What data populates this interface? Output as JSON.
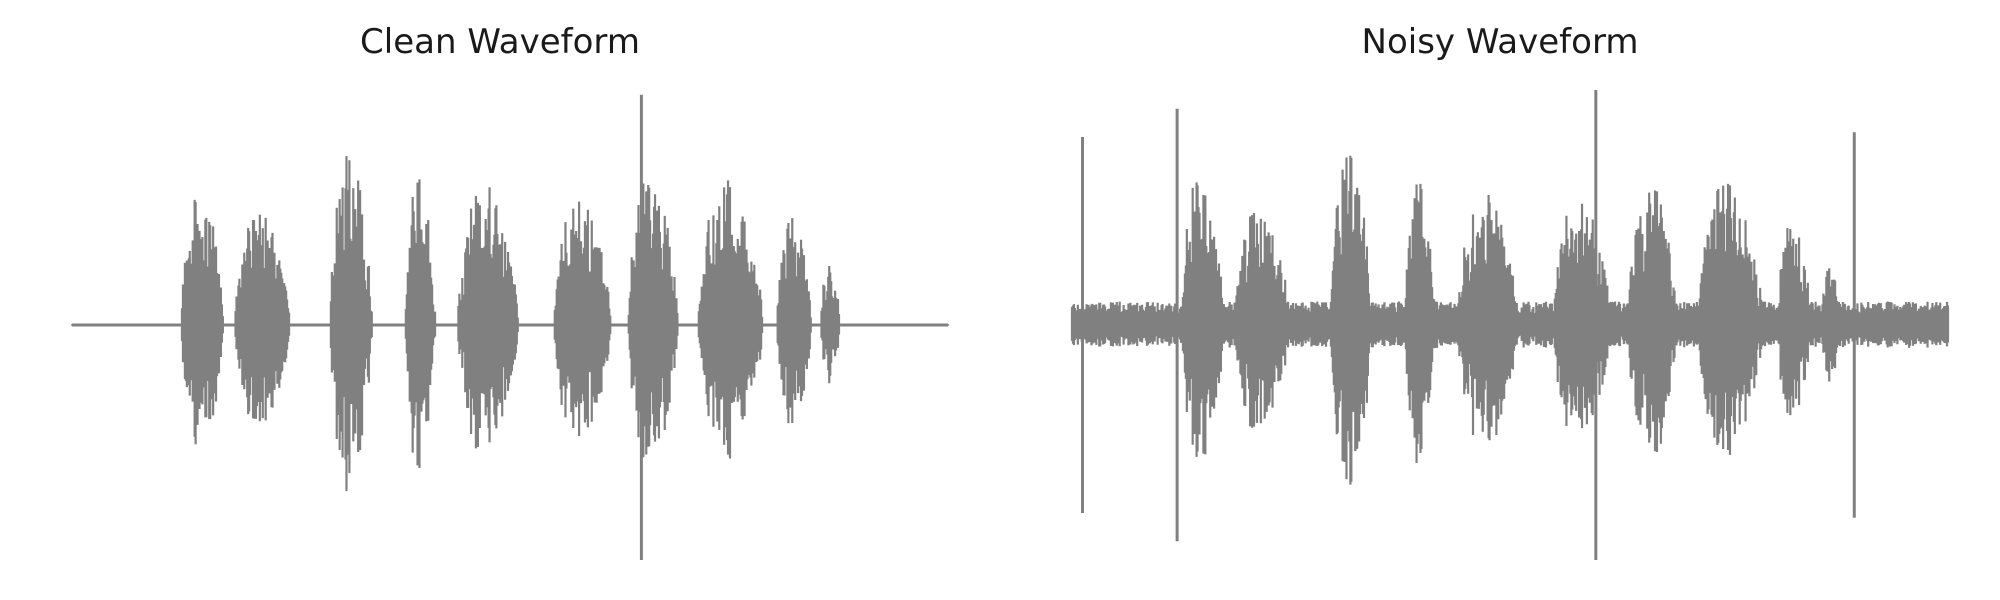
{
  "chart_data": [
    {
      "type": "line",
      "title": "Clean Waveform",
      "color": "#808080",
      "grid": false,
      "axes_visible": false,
      "ylim": [
        -1.0,
        1.0
      ],
      "x_range": [
        0.0,
        1.0
      ],
      "segments": [
        {
          "x": [
            0.125,
            0.18
          ],
          "peak": 0.68
        },
        {
          "x": [
            0.186,
            0.258
          ],
          "peak": 0.56
        },
        {
          "x": [
            0.295,
            0.35
          ],
          "peak": 0.9
        },
        {
          "x": [
            0.38,
            0.42
          ],
          "peak": 0.75
        },
        {
          "x": [
            0.44,
            0.52
          ],
          "peak": 0.71
        },
        {
          "x": [
            0.55,
            0.625
          ],
          "peak": 0.65
        },
        {
          "x": [
            0.635,
            0.7
          ],
          "peak": 0.75
        },
        {
          "x": [
            0.715,
            0.8
          ],
          "peak": 0.74
        },
        {
          "x": [
            0.805,
            0.85
          ],
          "peak": 0.55
        },
        {
          "x": [
            0.855,
            0.88
          ],
          "peak": 0.32
        }
      ],
      "spikes": [
        {
          "x": 0.65,
          "top": 0.98,
          "bottom": -1.0
        }
      ],
      "floor": 0.0
    },
    {
      "type": "line",
      "title": "Noisy Waveform",
      "color": "#808080",
      "grid": false,
      "axes_visible": false,
      "ylim": [
        -1.0,
        1.0
      ],
      "x_range": [
        0.0,
        1.0
      ],
      "segments": [
        {
          "x": [
            0.125,
            0.18
          ],
          "peak": 0.8
        },
        {
          "x": [
            0.186,
            0.258
          ],
          "peak": 0.6
        },
        {
          "x": [
            0.295,
            0.35
          ],
          "peak": 0.85
        },
        {
          "x": [
            0.38,
            0.42
          ],
          "peak": 0.72
        },
        {
          "x": [
            0.44,
            0.52
          ],
          "peak": 0.68
        },
        {
          "x": [
            0.55,
            0.625
          ],
          "peak": 0.66
        },
        {
          "x": [
            0.635,
            0.7
          ],
          "peak": 0.72
        },
        {
          "x": [
            0.715,
            0.8
          ],
          "peak": 0.72
        },
        {
          "x": [
            0.805,
            0.85
          ],
          "peak": 0.52
        },
        {
          "x": [
            0.855,
            0.88
          ],
          "peak": 0.3
        }
      ],
      "spikes": [
        {
          "x": 0.012,
          "top": 0.8,
          "bottom": -0.8
        },
        {
          "x": 0.12,
          "top": 0.92,
          "bottom": -0.92
        },
        {
          "x": 0.598,
          "top": 1.0,
          "bottom": -1.0
        },
        {
          "x": 0.893,
          "top": 0.82,
          "bottom": -0.82
        }
      ],
      "floor": 0.1
    }
  ]
}
